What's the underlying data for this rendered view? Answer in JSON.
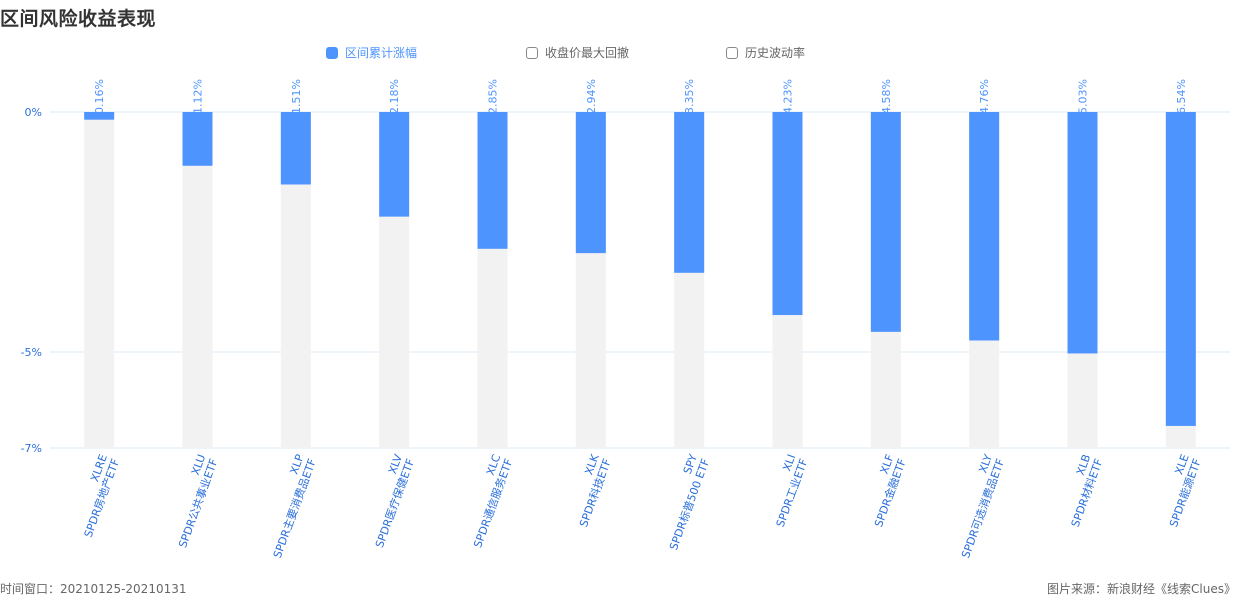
{
  "title": "区间风险收益表现",
  "legend": [
    {
      "label": "区间累计涨幅",
      "active": true
    },
    {
      "label": "收盘价最大回撤",
      "active": false
    },
    {
      "label": "历史波动率",
      "active": false
    }
  ],
  "footer": {
    "left": "时间窗口：20210125-20210131",
    "right": "图片来源：新浪财经《线索Clues》"
  },
  "colors": {
    "bar": "#4d94ff",
    "bar_background": "#f2f2f2",
    "axis_text": "#2a6fdb",
    "grid": "#dbe8f5"
  },
  "chart_data": {
    "type": "bar",
    "categories": [
      {
        "code": "XLRE",
        "name": "SPDR房地产ETF"
      },
      {
        "code": "XLU",
        "name": "SPDR公共事业ETF"
      },
      {
        "code": "XLP",
        "name": "SPDR主要消费品ETF"
      },
      {
        "code": "XLV",
        "name": "SPDR医疗保健ETF"
      },
      {
        "code": "XLC",
        "name": "SPDR通信服务ETF"
      },
      {
        "code": "XLK",
        "name": "SPDR科技ETF"
      },
      {
        "code": "SPY",
        "name": "SPDR标普500 ETF"
      },
      {
        "code": "XLI",
        "name": "SPDR工业ETF"
      },
      {
        "code": "XLF",
        "name": "SPDR金融ETF"
      },
      {
        "code": "XLY",
        "name": "SPDR可选消费品ETF"
      },
      {
        "code": "XLB",
        "name": "SPDR材料ETF"
      },
      {
        "code": "XLE",
        "name": "SPDR能源ETF"
      }
    ],
    "series": [
      {
        "values": [
          -0.16,
          -1.12,
          -1.51,
          -2.18,
          -2.85,
          -2.94,
          -3.35,
          -4.23,
          -4.58,
          -4.76,
          -5.03,
          -6.54
        ],
        "labels": [
          "-0.16%",
          "-1.12%",
          "-1.51%",
          "-2.18%",
          "-2.85%",
          "-2.94%",
          "-3.35%",
          "-4.23%",
          "-4.58%",
          "-4.76%",
          "-5.03%",
          "-6.54%"
        ]
      }
    ],
    "ylim": [
      -7,
      0
    ],
    "yticks": [
      {
        "value": 0,
        "label": "0%"
      },
      {
        "value": -5,
        "label": "-5%"
      },
      {
        "value": -7,
        "label": "-7%"
      }
    ],
    "grid": true,
    "legend_position": "top-center"
  }
}
